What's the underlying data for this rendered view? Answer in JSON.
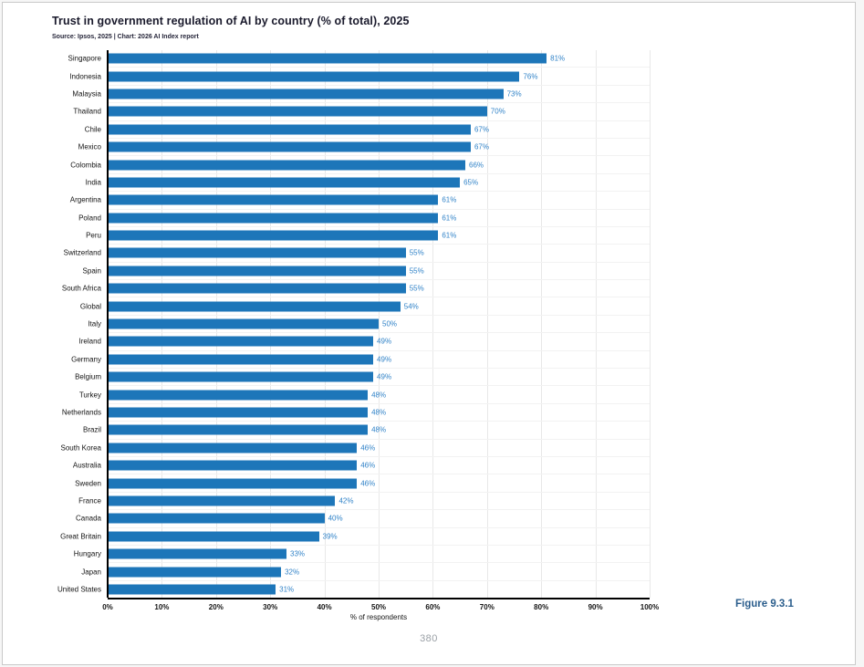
{
  "page": {
    "figure_label": "Figure 9.3.1",
    "page_number": "380"
  },
  "chart": {
    "title": "Trust in government regulation of AI by country (% of total), 2025",
    "source": "Source: Ipsos, 2025 | Chart: 2026 AI Index report",
    "xlabel": "% of respondents"
  },
  "chart_data": {
    "type": "bar",
    "orientation": "horizontal",
    "title": "Trust in government regulation of AI by country (% of total), 2025",
    "source": "Source: Ipsos, 2025 | Chart: 2026 AI Index report",
    "xlabel": "% of respondents",
    "ylabel": "",
    "xlim": [
      0,
      100
    ],
    "grid": true,
    "legend": false,
    "x_ticks": [
      "0%",
      "10%",
      "20%",
      "30%",
      "40%",
      "50%",
      "60%",
      "70%",
      "80%",
      "90%",
      "100%"
    ],
    "categories": [
      "Singapore",
      "Indonesia",
      "Malaysia",
      "Thailand",
      "Chile",
      "Mexico",
      "Colombia",
      "India",
      "Argentina",
      "Poland",
      "Peru",
      "Switzerland",
      "Spain",
      "South Africa",
      "Global",
      "Italy",
      "Ireland",
      "Germany",
      "Belgium",
      "Turkey",
      "Netherlands",
      "Brazil",
      "South Korea",
      "Australia",
      "Sweden",
      "France",
      "Canada",
      "Great Britain",
      "Hungary",
      "Japan",
      "United States"
    ],
    "values": [
      81,
      76,
      73,
      70,
      67,
      67,
      66,
      65,
      61,
      61,
      61,
      55,
      55,
      55,
      54,
      50,
      49,
      49,
      49,
      48,
      48,
      48,
      46,
      46,
      46,
      42,
      40,
      39,
      33,
      32,
      31
    ],
    "value_label_suffix": "%",
    "bar_color": "#1d76b9",
    "value_label_color": "#3183c8",
    "axis_color": "#000000",
    "grid_color": "#e8e8e8"
  },
  "colors": {
    "title": "#1a1a2c",
    "figure_label": "#2a5d8c",
    "page_number": "#9aa0a6",
    "page_border": "#c9c9c9"
  }
}
